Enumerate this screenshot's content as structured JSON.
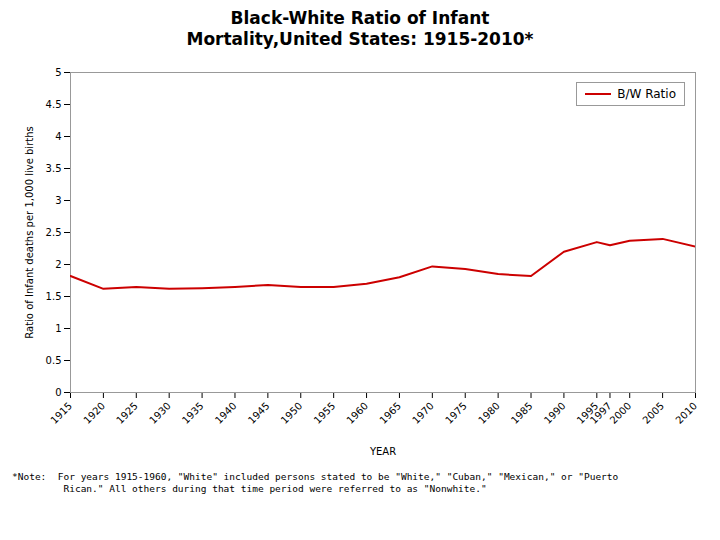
{
  "chart_data": {
    "type": "line",
    "title": "Black-White Ratio of Infant\nMortality,United States: 1915-2010*",
    "xlabel": "YEAR",
    "ylabel": "Ratio of Infant deaths per 1,000 live births",
    "note": "*Note:  For years 1915-1960, \"White\" included persons stated to be \"White,\" \"Cuban,\" \"Mexican,\" or \"Puerto\n         Rican.\" All others during that time period were referred to as \"Nonwhite.\"",
    "x": [
      1915,
      1920,
      1925,
      1930,
      1935,
      1940,
      1945,
      1950,
      1955,
      1960,
      1965,
      1970,
      1975,
      1980,
      1985,
      1990,
      1995,
      1997,
      2000,
      2005,
      2010
    ],
    "series": [
      {
        "name": "B/W Ratio",
        "color": "#cc0000",
        "values": [
          1.82,
          1.62,
          1.65,
          1.62,
          1.63,
          1.65,
          1.68,
          1.65,
          1.65,
          1.7,
          1.8,
          1.97,
          1.93,
          1.85,
          1.82,
          2.2,
          2.35,
          2.3,
          2.37,
          2.4,
          2.28
        ]
      }
    ],
    "xlim": [
      1915,
      2010
    ],
    "xticks": [
      1915,
      1920,
      1925,
      1930,
      1935,
      1940,
      1945,
      1950,
      1955,
      1960,
      1965,
      1970,
      1975,
      1980,
      1985,
      1990,
      1995,
      1997,
      2000,
      2005,
      2010
    ],
    "ylim": [
      0,
      5
    ],
    "yticks": [
      0,
      0.5,
      1,
      1.5,
      2,
      2.5,
      3,
      3.5,
      4,
      4.5,
      5
    ],
    "grid": false,
    "legend": "upper right"
  }
}
